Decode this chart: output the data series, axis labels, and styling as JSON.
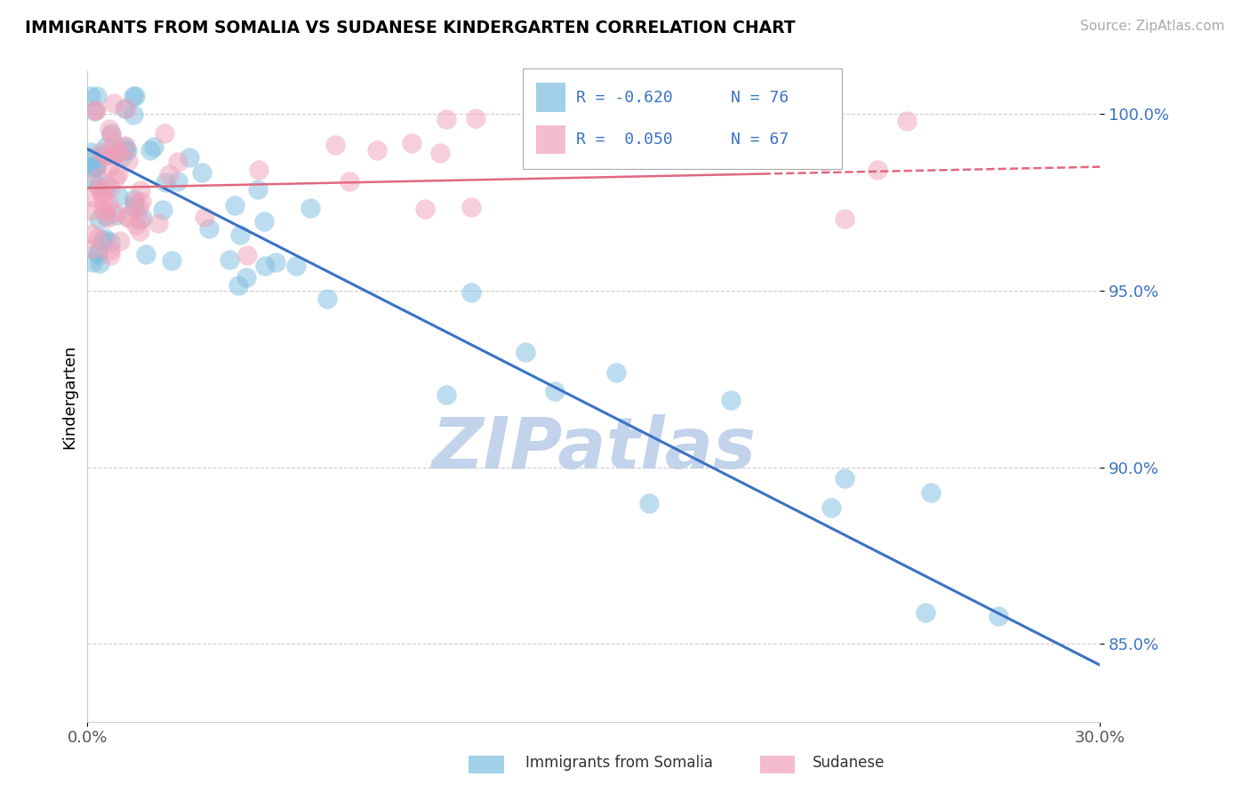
{
  "title": "IMMIGRANTS FROM SOMALIA VS SUDANESE KINDERGARTEN CORRELATION CHART",
  "source_text": "Source: ZipAtlas.com",
  "ylabel": "Kindergarten",
  "x_min": 0.0,
  "x_max": 0.3,
  "y_min": 0.828,
  "y_max": 1.012,
  "y_ticks": [
    0.85,
    0.9,
    0.95,
    1.0
  ],
  "y_tick_labels": [
    "85.0%",
    "90.0%",
    "95.0%",
    "100.0%"
  ],
  "x_ticks": [
    0.0,
    0.3
  ],
  "x_tick_labels": [
    "0.0%",
    "30.0%"
  ],
  "legend_r1": "R = -0.620",
  "legend_n1": "N = 76",
  "legend_r2": "R =  0.050",
  "legend_n2": "N = 67",
  "color_blue": "#7bbde0",
  "color_pink": "#f0a0b8",
  "line_blue": "#3a72c4",
  "line_pink": "#e06880",
  "watermark": "ZIPatlas",
  "watermark_color": "#b8cce8",
  "blue_trend_x0": 0.0,
  "blue_trend_y0": 0.99,
  "blue_trend_x1": 0.3,
  "blue_trend_y1": 0.844,
  "pink_trend_x0": 0.0,
  "pink_trend_y0": 0.979,
  "pink_trend_x1": 0.3,
  "pink_trend_y1": 0.985
}
